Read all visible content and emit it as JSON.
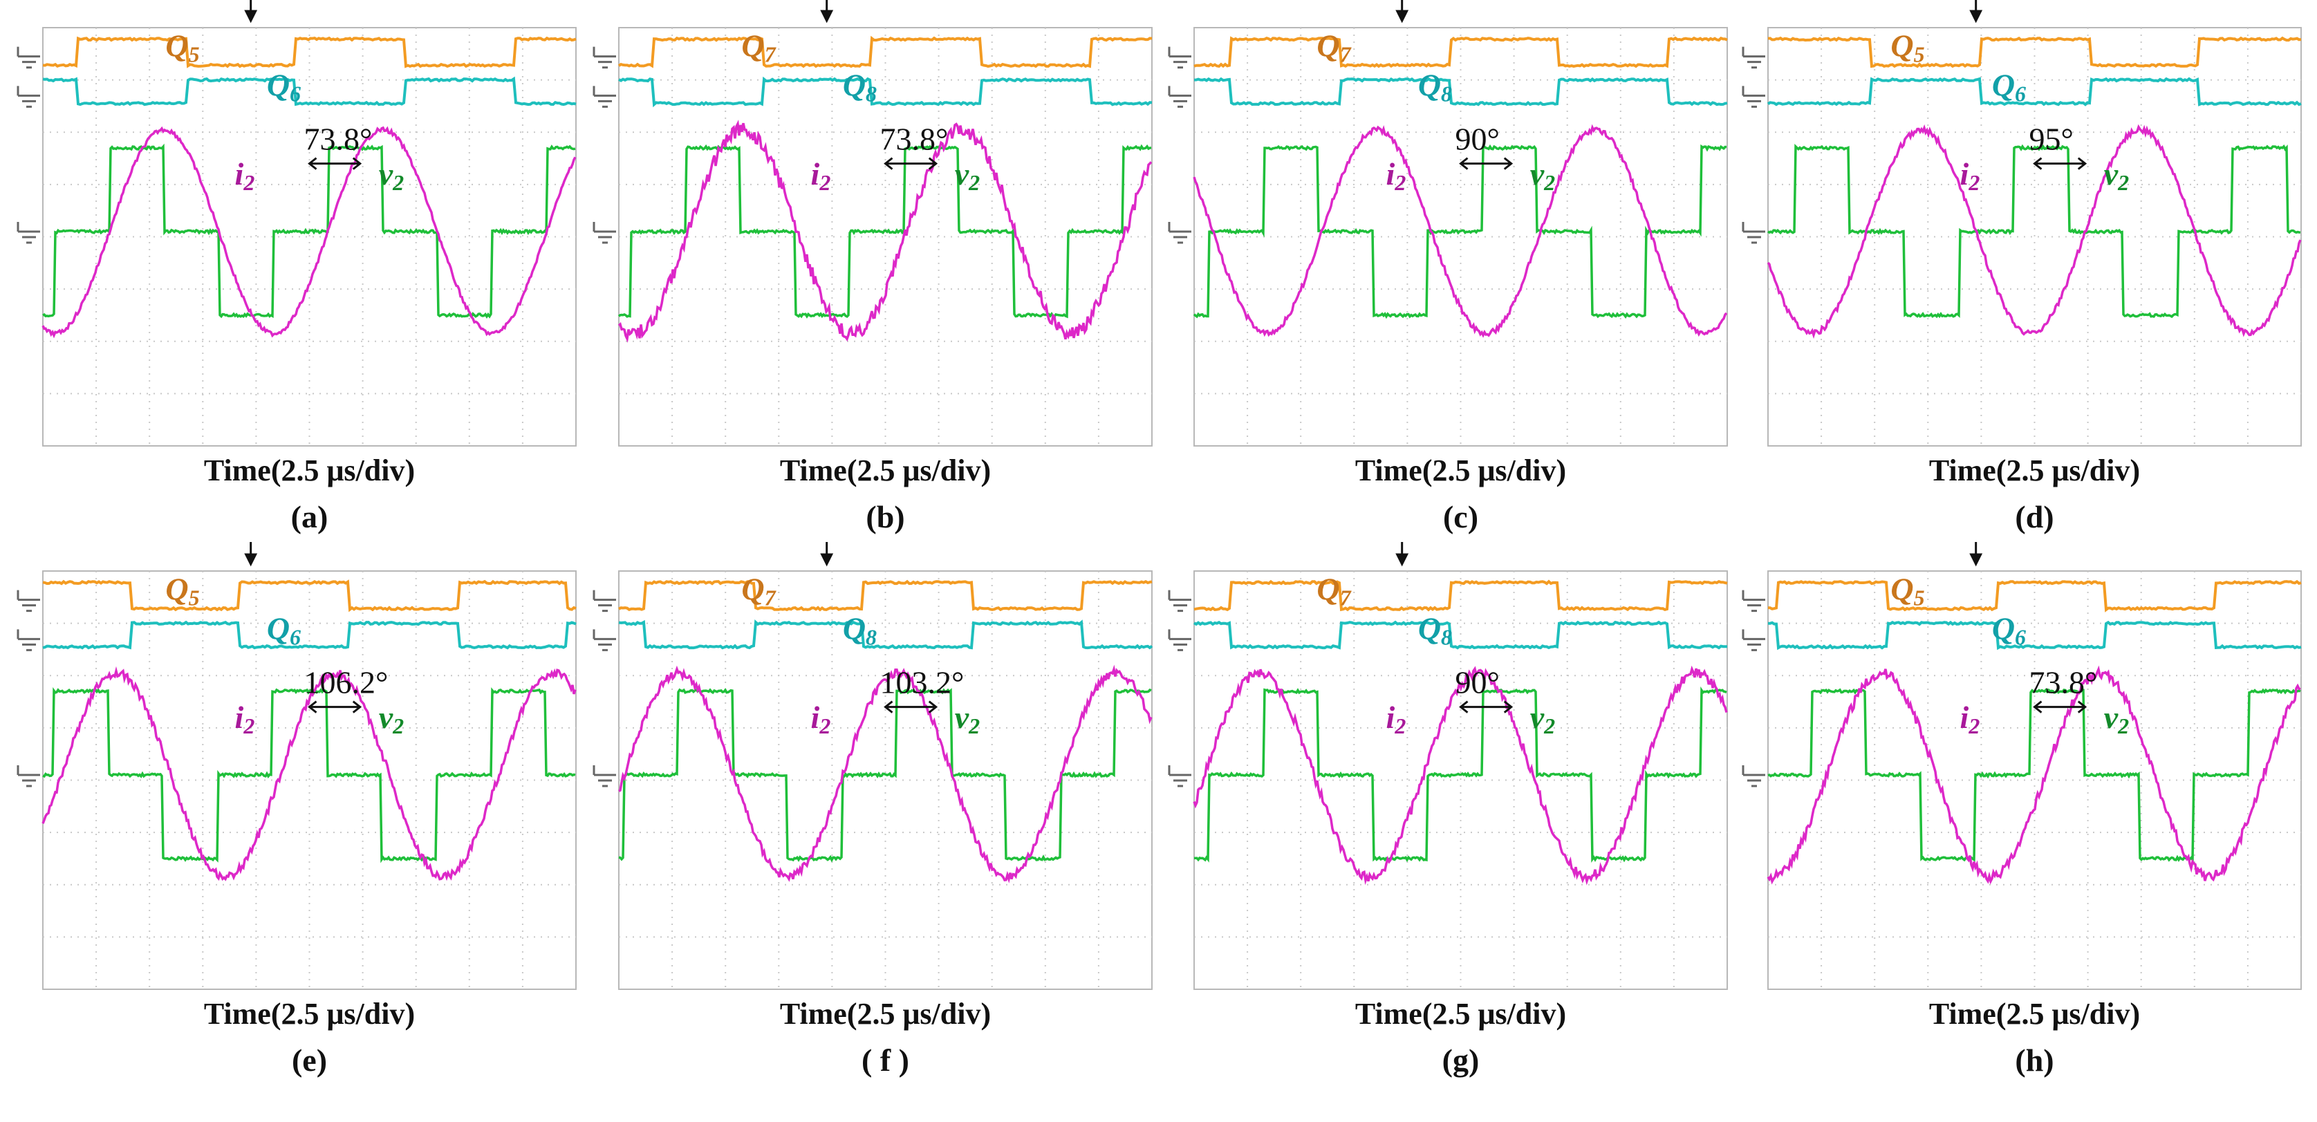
{
  "figure": {
    "time_label": "Time(2.5 μs/div)"
  },
  "colors": {
    "q_top": "#f39b22",
    "q_bottom": "#1ebfbd",
    "v2": "#1fbf3a",
    "i2": "#dd28c8",
    "grid": "#c8c8c8",
    "frame": "#b8b8b8",
    "text": "#111111"
  },
  "chart_data": [
    {
      "panel": "(a)",
      "type": "line",
      "xlabel": "Time(2.5 μs/div)",
      "series": [
        {
          "name": "Q5",
          "label": "Q5"
        },
        {
          "name": "Q6",
          "label": "Q6"
        },
        {
          "name": "i2",
          "label": "i2"
        },
        {
          "name": "v2",
          "label": "v2"
        }
      ],
      "x_divisions": 10,
      "y_divisions": 8,
      "period_div": 4.1,
      "i2_phase_div": 1.25,
      "v2_offset_div": 1.05,
      "current_noise": 0.15,
      "phase_shift_deg": 73.8,
      "phase_label": "73.8°"
    },
    {
      "panel": "(b)",
      "type": "line",
      "xlabel": "Time(2.5 μs/div)",
      "series": [
        {
          "name": "Q7",
          "label": "Q7"
        },
        {
          "name": "Q8",
          "label": "Q8"
        },
        {
          "name": "i2",
          "label": "i2"
        },
        {
          "name": "v2",
          "label": "v2"
        }
      ],
      "x_divisions": 10,
      "y_divisions": 8,
      "period_div": 4.1,
      "i2_phase_div": 1.3,
      "v2_offset_div": 1.05,
      "current_noise": 0.5,
      "phase_shift_deg": 73.8,
      "phase_label": "73.8°"
    },
    {
      "panel": "(c)",
      "type": "line",
      "xlabel": "Time(2.5 μs/div)",
      "series": [
        {
          "name": "Q7",
          "label": "Q7"
        },
        {
          "name": "Q8",
          "label": "Q8"
        },
        {
          "name": "v2",
          "label": "v2"
        },
        {
          "name": "i2",
          "label": "i2"
        }
      ],
      "x_divisions": 10,
      "y_divisions": 8,
      "period_div": 4.1,
      "i2_phase_div": 2.4,
      "v2_offset_div": 1.1,
      "current_noise": 0.2,
      "phase_shift_deg": 90,
      "phase_label": "90°"
    },
    {
      "panel": "(d)",
      "type": "line",
      "xlabel": "Time(2.5 μs/div)",
      "series": [
        {
          "name": "Q5",
          "label": "Q5"
        },
        {
          "name": "Q6",
          "label": "Q6"
        },
        {
          "name": "i2",
          "label": "i2"
        },
        {
          "name": "v2",
          "label": "v2"
        }
      ],
      "x_divisions": 10,
      "y_divisions": 8,
      "period_div": 4.1,
      "i2_phase_div": 1.85,
      "v2_offset_div": 0.3,
      "current_noise": 0.2,
      "phase_shift_deg": 95,
      "phase_label": "95°"
    },
    {
      "panel": "(e)",
      "type": "line",
      "xlabel": "Time(2.5 μs/div)",
      "series": [
        {
          "name": "Q5",
          "label": "Q5"
        },
        {
          "name": "Q6",
          "label": "Q6"
        },
        {
          "name": "i2",
          "label": "i2"
        },
        {
          "name": "v2",
          "label": "v2"
        }
      ],
      "x_divisions": 10,
      "y_divisions": 8,
      "period_div": 4.1,
      "i2_phase_div": 0.35,
      "v2_offset_div": 0.0,
      "current_noise": 0.3,
      "phase_shift_deg": 106.2,
      "phase_label": "106.2°"
    },
    {
      "panel": "( f )",
      "type": "line",
      "xlabel": "Time(2.5 μs/div)",
      "series": [
        {
          "name": "Q7",
          "label": "Q7"
        },
        {
          "name": "Q8",
          "label": "Q8"
        },
        {
          "name": "i2",
          "label": "i2"
        },
        {
          "name": "v2",
          "label": "v2"
        }
      ],
      "x_divisions": 10,
      "y_divisions": 8,
      "period_div": 4.1,
      "i2_phase_div": 0.1,
      "v2_offset_div": 0.9,
      "current_noise": 0.3,
      "phase_shift_deg": 103.2,
      "phase_label": "103.2°"
    },
    {
      "panel": "(g)",
      "type": "line",
      "xlabel": "Time(2.5 μs/div)",
      "series": [
        {
          "name": "Q7",
          "label": "Q7"
        },
        {
          "name": "Q8",
          "label": "Q8"
        },
        {
          "name": "i2",
          "label": "i2"
        },
        {
          "name": "v2",
          "label": "v2"
        }
      ],
      "x_divisions": 10,
      "y_divisions": 8,
      "period_div": 4.1,
      "i2_phase_div": 0.2,
      "v2_offset_div": 1.1,
      "current_noise": 0.35,
      "phase_shift_deg": 90,
      "phase_label": "90°"
    },
    {
      "panel": "(h)",
      "type": "line",
      "xlabel": "Time(2.5 μs/div)",
      "series": [
        {
          "name": "Q5",
          "label": "Q5"
        },
        {
          "name": "Q6",
          "label": "Q6"
        },
        {
          "name": "i2",
          "label": "i2"
        },
        {
          "name": "v2",
          "label": "v2"
        }
      ],
      "x_divisions": 10,
      "y_divisions": 8,
      "period_div": 4.1,
      "i2_phase_div": 1.1,
      "v2_offset_div": 0.6,
      "current_noise": 0.35,
      "phase_shift_deg": 73.8,
      "phase_label": "73.8°"
    }
  ]
}
